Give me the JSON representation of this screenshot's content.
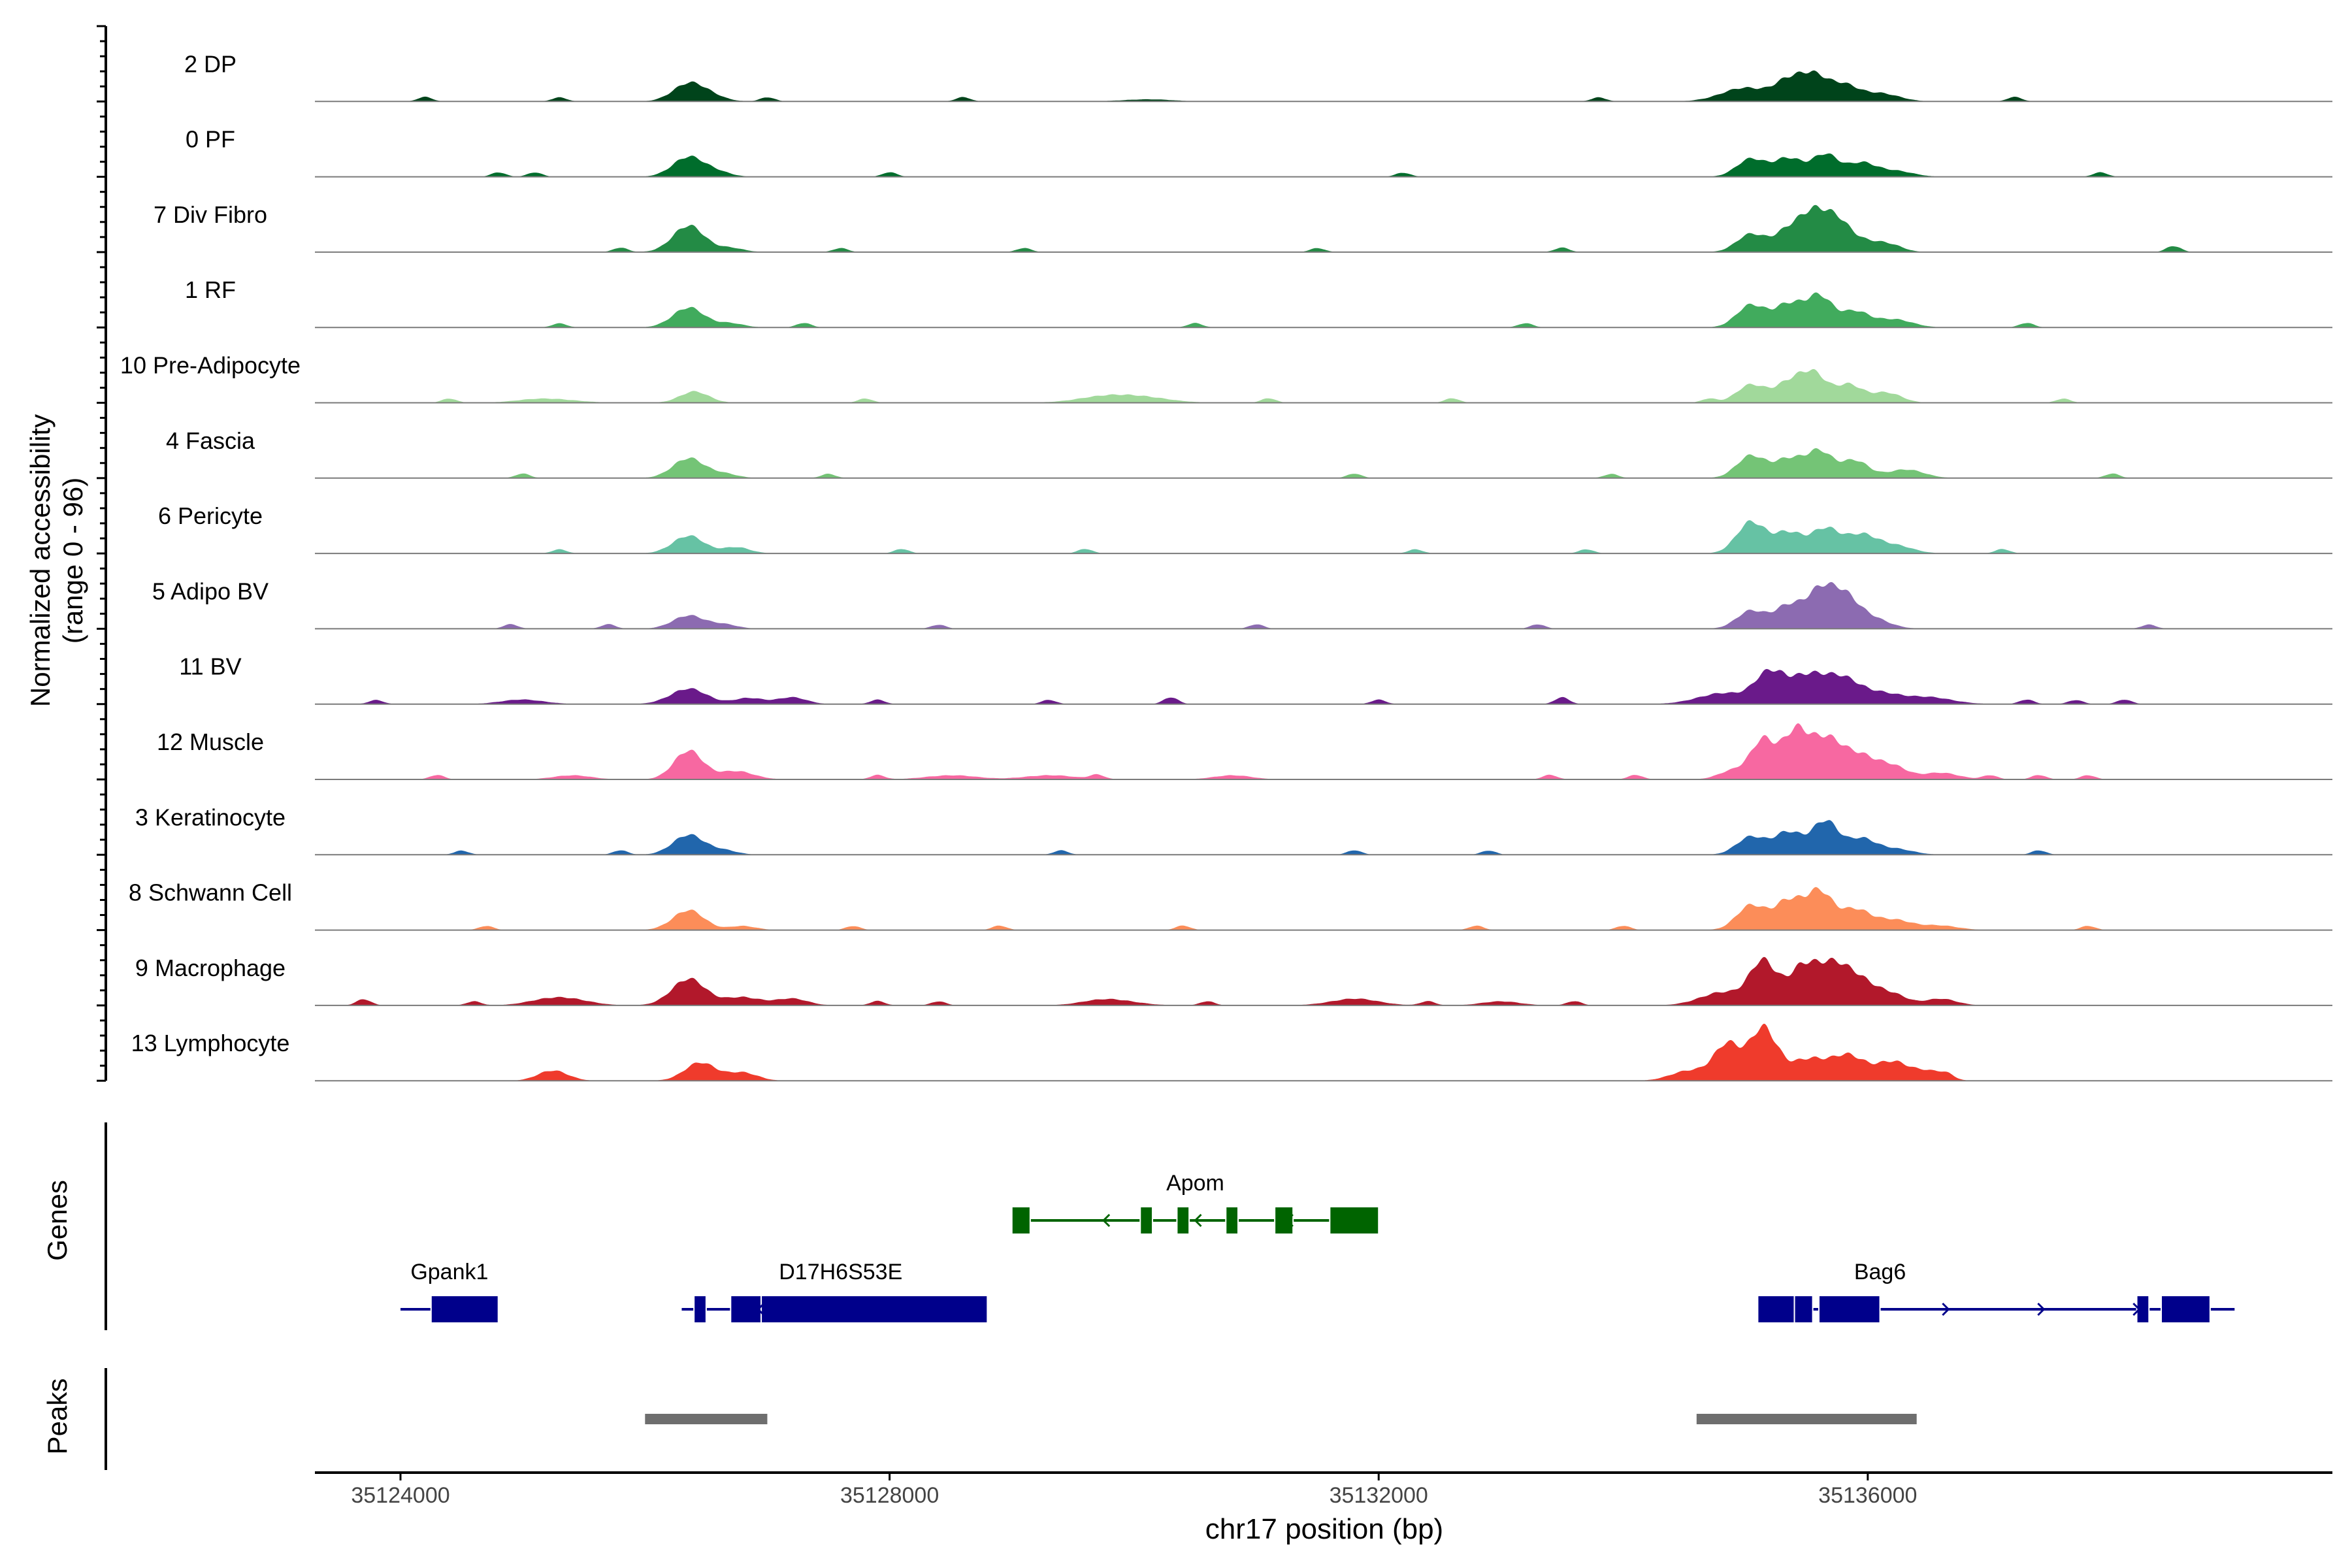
{
  "chart_data": {
    "type": "area",
    "chrom": "chr17",
    "xlabel": "chr17 position (bp)",
    "ylabel_line1": "Normalized accessibility",
    "ylabel_line2": "(range 0 - 96)",
    "xlim": [
      123300,
      139800
    ],
    "x_ticks": [
      124000,
      128000,
      132000,
      136000
    ],
    "x_tick_labels": [
      "35124000",
      "35128000",
      "35132000",
      "35136000"
    ],
    "y_range": [
      0,
      96
    ],
    "tracks": [
      {
        "label": "2 DP",
        "color": "#00441B",
        "peaks": [
          [
            126350,
            130,
            8
          ],
          [
            126550,
            120,
            2
          ],
          [
            130100,
            200,
            1
          ],
          [
            135000,
            200,
            6
          ],
          [
            135350,
            110,
            9
          ],
          [
            135550,
            110,
            11
          ],
          [
            135800,
            120,
            7
          ],
          [
            136100,
            150,
            4
          ]
        ],
        "blips": [
          [
            124200,
            2
          ],
          [
            125300,
            2
          ],
          [
            127000,
            2
          ],
          [
            128600,
            2
          ],
          [
            133800,
            2
          ],
          [
            137200,
            2
          ]
        ]
      },
      {
        "label": "0 PF",
        "color": "#006D2C",
        "peaks": [
          [
            126350,
            130,
            9
          ],
          [
            126600,
            110,
            2
          ],
          [
            135050,
            120,
            8
          ],
          [
            135350,
            110,
            9
          ],
          [
            135650,
            110,
            10
          ],
          [
            135950,
            110,
            6
          ],
          [
            136200,
            150,
            3
          ]
        ],
        "blips": [
          [
            124800,
            2
          ],
          [
            125100,
            2
          ],
          [
            128000,
            2
          ],
          [
            132200,
            2
          ],
          [
            137900,
            2
          ]
        ]
      },
      {
        "label": "7 Div Fibro",
        "color": "#238B45",
        "peaks": [
          [
            126350,
            130,
            12
          ],
          [
            126700,
            110,
            2
          ],
          [
            135050,
            120,
            8
          ],
          [
            135350,
            110,
            10
          ],
          [
            135550,
            110,
            16
          ],
          [
            135750,
            110,
            12
          ],
          [
            136000,
            150,
            5
          ],
          [
            136200,
            100,
            2
          ]
        ],
        "blips": [
          [
            125800,
            2
          ],
          [
            127600,
            2
          ],
          [
            129100,
            2
          ],
          [
            131500,
            2
          ],
          [
            133500,
            2
          ],
          [
            138500,
            3
          ]
        ]
      },
      {
        "label": "1 RF",
        "color": "#41AB5D",
        "peaks": [
          [
            126350,
            130,
            9
          ],
          [
            126700,
            110,
            2
          ],
          [
            135050,
            120,
            10
          ],
          [
            135350,
            110,
            11
          ],
          [
            135600,
            110,
            14
          ],
          [
            135900,
            110,
            7
          ],
          [
            136200,
            150,
            4
          ]
        ],
        "blips": [
          [
            125300,
            2
          ],
          [
            127300,
            2
          ],
          [
            130500,
            2
          ],
          [
            133200,
            2
          ],
          [
            137300,
            2
          ]
        ]
      },
      {
        "label": "10 Pre-Adipocyte",
        "color": "#A1D99B",
        "peaks": [
          [
            126400,
            120,
            5
          ],
          [
            129900,
            280,
            4
          ],
          [
            125200,
            220,
            2
          ],
          [
            135050,
            120,
            8
          ],
          [
            135350,
            110,
            9
          ],
          [
            135550,
            110,
            13
          ],
          [
            135850,
            110,
            8
          ],
          [
            136150,
            120,
            5
          ]
        ],
        "blips": [
          [
            124400,
            2
          ],
          [
            127800,
            2
          ],
          [
            131100,
            2
          ],
          [
            132600,
            2
          ],
          [
            134700,
            2
          ],
          [
            137600,
            2
          ]
        ]
      },
      {
        "label": "4 Fascia",
        "color": "#74C476",
        "peaks": [
          [
            126350,
            130,
            9
          ],
          [
            126650,
            110,
            2
          ],
          [
            135050,
            120,
            10
          ],
          [
            135350,
            110,
            9
          ],
          [
            135600,
            110,
            12
          ],
          [
            135900,
            110,
            8
          ],
          [
            136300,
            150,
            4
          ]
        ],
        "blips": [
          [
            125000,
            2
          ],
          [
            127500,
            2
          ],
          [
            131800,
            2
          ],
          [
            133900,
            2
          ],
          [
            138000,
            2
          ]
        ]
      },
      {
        "label": "6 Pericyte",
        "color": "#66C2A4",
        "peaks": [
          [
            126350,
            130,
            8
          ],
          [
            126750,
            110,
            3
          ],
          [
            135050,
            120,
            14
          ],
          [
            135350,
            110,
            10
          ],
          [
            135650,
            120,
            11
          ],
          [
            135950,
            120,
            8
          ],
          [
            136200,
            150,
            4
          ]
        ],
        "blips": [
          [
            125300,
            2
          ],
          [
            128100,
            2
          ],
          [
            129600,
            2
          ],
          [
            132300,
            2
          ],
          [
            133700,
            2
          ],
          [
            137100,
            2
          ]
        ]
      },
      {
        "label": "5 Adipo BV",
        "color": "#8C6BB1",
        "peaks": [
          [
            126350,
            130,
            6
          ],
          [
            126650,
            110,
            2
          ],
          [
            135050,
            120,
            8
          ],
          [
            135350,
            110,
            11
          ],
          [
            135600,
            110,
            16
          ],
          [
            135800,
            110,
            12
          ],
          [
            136000,
            150,
            6
          ]
        ],
        "blips": [
          [
            124900,
            2
          ],
          [
            125700,
            2
          ],
          [
            128400,
            2
          ],
          [
            131000,
            2
          ],
          [
            133300,
            2
          ],
          [
            138300,
            2
          ]
        ]
      },
      {
        "label": "11 BV",
        "color": "#6A1A8A",
        "peaks": [
          [
            126350,
            150,
            7
          ],
          [
            126850,
            120,
            3
          ],
          [
            127200,
            120,
            3
          ],
          [
            125000,
            180,
            2
          ],
          [
            134800,
            200,
            5
          ],
          [
            135200,
            120,
            14
          ],
          [
            135500,
            150,
            13
          ],
          [
            135800,
            140,
            10
          ],
          [
            136100,
            160,
            5
          ],
          [
            136500,
            200,
            3
          ]
        ],
        "blips": [
          [
            123800,
            2
          ],
          [
            127900,
            2
          ],
          [
            129300,
            2
          ],
          [
            130300,
            3
          ],
          [
            132000,
            2
          ],
          [
            133500,
            3
          ],
          [
            137300,
            2
          ],
          [
            137700,
            2
          ],
          [
            138100,
            2
          ]
        ]
      },
      {
        "label": "12 Muscle",
        "color": "#F768A1",
        "peaks": [
          [
            126350,
            120,
            13
          ],
          [
            126750,
            140,
            4
          ],
          [
            125400,
            150,
            2
          ],
          [
            128500,
            200,
            2
          ],
          [
            129300,
            200,
            2
          ],
          [
            130800,
            150,
            2
          ],
          [
            134900,
            120,
            4
          ],
          [
            135150,
            100,
            18
          ],
          [
            135400,
            100,
            21
          ],
          [
            135650,
            140,
            18
          ],
          [
            135950,
            130,
            10
          ],
          [
            136200,
            120,
            6
          ],
          [
            136600,
            150,
            3
          ]
        ],
        "blips": [
          [
            124300,
            2
          ],
          [
            127900,
            2
          ],
          [
            129700,
            2
          ],
          [
            133400,
            2
          ],
          [
            134100,
            2
          ],
          [
            137000,
            2
          ],
          [
            137400,
            2
          ],
          [
            137800,
            2
          ]
        ]
      },
      {
        "label": "3 Keratinocyte",
        "color": "#2166AC",
        "peaks": [
          [
            126350,
            130,
            9
          ],
          [
            126650,
            110,
            2
          ],
          [
            135050,
            120,
            8
          ],
          [
            135350,
            110,
            11
          ],
          [
            135650,
            110,
            15
          ],
          [
            135950,
            110,
            7
          ],
          [
            136200,
            150,
            3
          ]
        ],
        "blips": [
          [
            124500,
            2
          ],
          [
            125800,
            2
          ],
          [
            129400,
            2
          ],
          [
            131800,
            2
          ],
          [
            132900,
            2
          ],
          [
            137400,
            2
          ]
        ]
      },
      {
        "label": "8 Schwann Cell",
        "color": "#FC8D59",
        "peaks": [
          [
            126350,
            130,
            9
          ],
          [
            126800,
            110,
            2
          ],
          [
            135050,
            120,
            11
          ],
          [
            135350,
            110,
            14
          ],
          [
            135600,
            110,
            17
          ],
          [
            135900,
            120,
            9
          ],
          [
            136200,
            150,
            5
          ],
          [
            136600,
            150,
            2
          ]
        ],
        "blips": [
          [
            124700,
            2
          ],
          [
            127700,
            2
          ],
          [
            128900,
            2
          ],
          [
            130400,
            2
          ],
          [
            132800,
            2
          ],
          [
            134000,
            2
          ],
          [
            137800,
            2
          ]
        ]
      },
      {
        "label": "9 Macrophage",
        "color": "#B2182B",
        "peaks": [
          [
            125300,
            200,
            4
          ],
          [
            126350,
            140,
            12
          ],
          [
            126800,
            150,
            4
          ],
          [
            127200,
            130,
            3
          ],
          [
            129800,
            200,
            3
          ],
          [
            131800,
            200,
            3
          ],
          [
            133000,
            150,
            2
          ],
          [
            134800,
            180,
            6
          ],
          [
            135150,
            110,
            20
          ],
          [
            135450,
            110,
            16
          ],
          [
            135700,
            140,
            17
          ],
          [
            135950,
            130,
            10
          ],
          [
            136200,
            120,
            5
          ],
          [
            136600,
            130,
            3
          ]
        ],
        "blips": [
          [
            123700,
            3
          ],
          [
            124600,
            2
          ],
          [
            127900,
            2
          ],
          [
            128400,
            2
          ],
          [
            130600,
            2
          ],
          [
            132400,
            2
          ],
          [
            133600,
            2
          ]
        ]
      },
      {
        "label": "13 Lymphocyte",
        "color": "#EF3B2C",
        "peaks": [
          [
            125250,
            120,
            5
          ],
          [
            126450,
            130,
            8
          ],
          [
            126800,
            120,
            4
          ],
          [
            134550,
            150,
            5
          ],
          [
            134850,
            110,
            16
          ],
          [
            135150,
            110,
            24
          ],
          [
            135500,
            150,
            10
          ],
          [
            135850,
            140,
            11
          ],
          [
            136200,
            130,
            9
          ],
          [
            136500,
            120,
            4
          ]
        ],
        "blips": [
          [
            136650,
            2
          ]
        ]
      }
    ],
    "genes": [
      {
        "name": "Apom",
        "color": "#006400",
        "strand": "-",
        "start": 129000,
        "end": 132000,
        "row": 0,
        "exons": [
          [
            129000,
            129150
          ],
          [
            130050,
            130150
          ],
          [
            130350,
            130450
          ],
          [
            130750,
            130850
          ],
          [
            131150,
            131300
          ],
          [
            131600,
            132000
          ]
        ]
      },
      {
        "name": "Gpank1",
        "color": "#00008B",
        "strand": "-",
        "start": 124000,
        "end": 124800,
        "row": 1,
        "exons": [
          [
            124250,
            124800
          ]
        ]
      },
      {
        "name": "D17H6S53E",
        "color": "#00008B",
        "strand": "-",
        "start": 126300,
        "end": 128800,
        "row": 1,
        "exons": [
          [
            126400,
            126500
          ],
          [
            126700,
            126950
          ],
          [
            126950,
            128800
          ]
        ]
      },
      {
        "name": "Bag6",
        "color": "#00008B",
        "strand": "+",
        "start": 135100,
        "end": 139000,
        "row": 1,
        "exons": [
          [
            135100,
            135400
          ],
          [
            135400,
            135550
          ],
          [
            135600,
            136100
          ],
          [
            138200,
            138300
          ],
          [
            138400,
            138800
          ]
        ]
      }
    ],
    "peaks_track": [
      [
        126000,
        127000
      ],
      [
        134600,
        136400
      ]
    ],
    "genes_label": "Genes",
    "peaks_label": "Peaks"
  }
}
